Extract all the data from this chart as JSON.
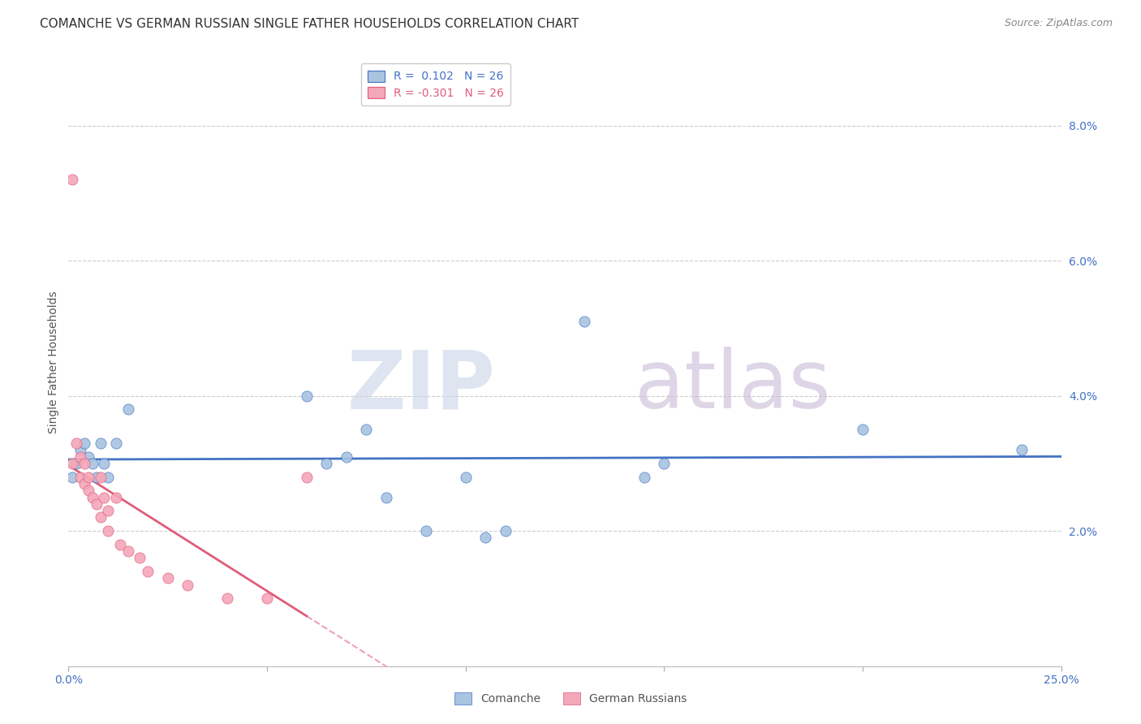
{
  "title": "COMANCHE VS GERMAN RUSSIAN SINGLE FATHER HOUSEHOLDS CORRELATION CHART",
  "source": "Source: ZipAtlas.com",
  "ylabel_label": "Single Father Households",
  "xlim": [
    0.0,
    0.25
  ],
  "ylim": [
    0.0,
    0.09
  ],
  "xticks": [
    0.0,
    0.05,
    0.1,
    0.15,
    0.2,
    0.25
  ],
  "yticks": [
    0.0,
    0.02,
    0.04,
    0.06,
    0.08
  ],
  "comanche_R": "0.102",
  "comanche_N": "26",
  "german_R": "-0.301",
  "german_N": "26",
  "comanche_color": "#a8c4e0",
  "german_color": "#f4a7b9",
  "trendline_comanche_color": "#4472c4",
  "trendline_german_color": "#e05c7a",
  "trendline_german_dash_color": "#f0a0b8",
  "background_color": "#ffffff",
  "grid_color": "#cccccc",
  "watermark_zip": "ZIP",
  "watermark_atlas": "atlas",
  "watermark_color_zip": "#c8d4e8",
  "watermark_color_atlas": "#c8bcd8",
  "comanche_x": [
    0.001,
    0.002,
    0.003,
    0.004,
    0.005,
    0.006,
    0.007,
    0.008,
    0.009,
    0.01,
    0.012,
    0.015,
    0.06,
    0.065,
    0.07,
    0.075,
    0.08,
    0.09,
    0.1,
    0.105,
    0.11,
    0.13,
    0.145,
    0.15,
    0.2,
    0.24
  ],
  "comanche_y": [
    0.028,
    0.03,
    0.032,
    0.033,
    0.031,
    0.03,
    0.028,
    0.033,
    0.03,
    0.028,
    0.033,
    0.038,
    0.04,
    0.03,
    0.031,
    0.035,
    0.025,
    0.02,
    0.028,
    0.019,
    0.02,
    0.051,
    0.028,
    0.03,
    0.035,
    0.032
  ],
  "german_x": [
    0.001,
    0.001,
    0.002,
    0.003,
    0.003,
    0.004,
    0.004,
    0.005,
    0.005,
    0.006,
    0.007,
    0.008,
    0.008,
    0.009,
    0.01,
    0.01,
    0.012,
    0.013,
    0.015,
    0.018,
    0.02,
    0.025,
    0.03,
    0.04,
    0.05,
    0.06
  ],
  "german_y": [
    0.072,
    0.03,
    0.033,
    0.031,
    0.028,
    0.03,
    0.027,
    0.028,
    0.026,
    0.025,
    0.024,
    0.022,
    0.028,
    0.025,
    0.023,
    0.02,
    0.025,
    0.018,
    0.017,
    0.016,
    0.014,
    0.013,
    0.012,
    0.01,
    0.01,
    0.028
  ],
  "title_fontsize": 11,
  "axis_label_fontsize": 10,
  "tick_fontsize": 10,
  "legend_fontsize": 10,
  "source_fontsize": 9
}
